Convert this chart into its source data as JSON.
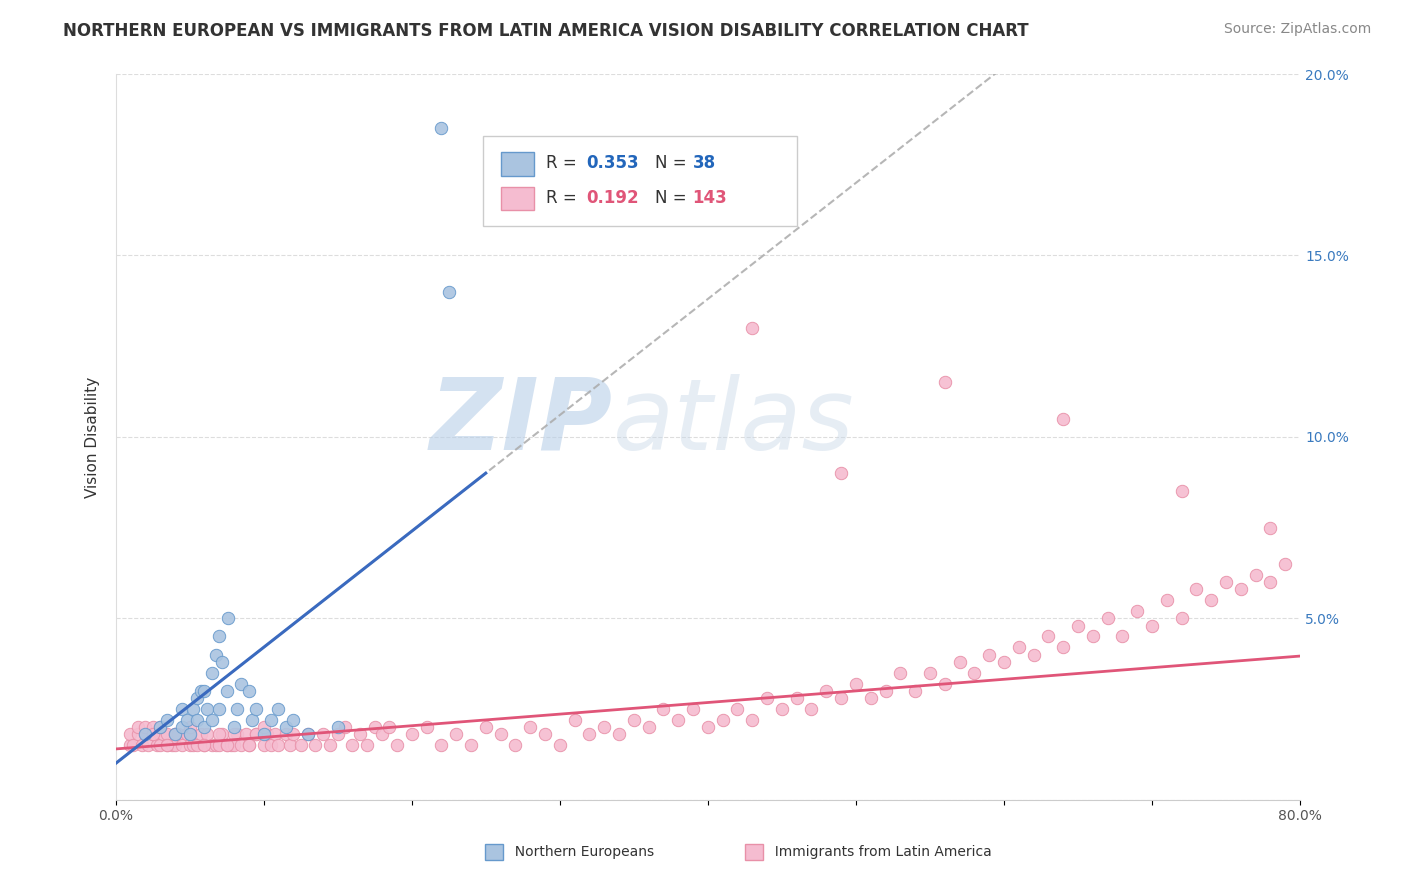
{
  "title": "NORTHERN EUROPEAN VS IMMIGRANTS FROM LATIN AMERICA VISION DISABILITY CORRELATION CHART",
  "source": "Source: ZipAtlas.com",
  "ylabel": "Vision Disability",
  "xlim": [
    0.0,
    0.8
  ],
  "ylim": [
    0.0,
    0.2
  ],
  "xticks": [
    0.0,
    0.1,
    0.2,
    0.3,
    0.4,
    0.5,
    0.6,
    0.7,
    0.8
  ],
  "xticklabels": [
    "0.0%",
    "",
    "",
    "",
    "",
    "",
    "",
    "",
    "80.0%"
  ],
  "yticks": [
    0.0,
    0.05,
    0.1,
    0.15,
    0.2
  ],
  "yticklabels": [
    "",
    "5.0%",
    "10.0%",
    "15.0%",
    "20.0%"
  ],
  "group1_color": "#aac4e0",
  "group1_edge": "#6699cc",
  "group2_color": "#f5bcd0",
  "group2_edge": "#e890a8",
  "line1_color": "#3a6abf",
  "line2_color": "#e05578",
  "dash_color": "#aaaaaa",
  "watermark_color": "#c5d8ec",
  "background_color": "#ffffff",
  "title_fontsize": 12,
  "source_fontsize": 10,
  "label_fontsize": 11,
  "tick_fontsize": 10,
  "group1_x": [
    0.02,
    0.03,
    0.035,
    0.04,
    0.045,
    0.045,
    0.048,
    0.05,
    0.052,
    0.055,
    0.055,
    0.058,
    0.06,
    0.06,
    0.062,
    0.065,
    0.065,
    0.068,
    0.07,
    0.07,
    0.072,
    0.075,
    0.076,
    0.08,
    0.082,
    0.085,
    0.09,
    0.092,
    0.095,
    0.1,
    0.105,
    0.11,
    0.115,
    0.12,
    0.13,
    0.15,
    0.22,
    0.225
  ],
  "group1_y": [
    0.018,
    0.02,
    0.022,
    0.018,
    0.02,
    0.025,
    0.022,
    0.018,
    0.025,
    0.022,
    0.028,
    0.03,
    0.02,
    0.03,
    0.025,
    0.022,
    0.035,
    0.04,
    0.025,
    0.045,
    0.038,
    0.03,
    0.05,
    0.02,
    0.025,
    0.032,
    0.03,
    0.022,
    0.025,
    0.018,
    0.022,
    0.025,
    0.02,
    0.022,
    0.018,
    0.02,
    0.185,
    0.14
  ],
  "group2_x": [
    0.01,
    0.01,
    0.012,
    0.015,
    0.015,
    0.018,
    0.02,
    0.02,
    0.022,
    0.025,
    0.025,
    0.028,
    0.03,
    0.03,
    0.032,
    0.035,
    0.035,
    0.038,
    0.04,
    0.04,
    0.042,
    0.045,
    0.048,
    0.05,
    0.05,
    0.052,
    0.055,
    0.058,
    0.06,
    0.062,
    0.065,
    0.068,
    0.07,
    0.072,
    0.075,
    0.078,
    0.08,
    0.082,
    0.085,
    0.088,
    0.09,
    0.095,
    0.1,
    0.102,
    0.105,
    0.108,
    0.11,
    0.115,
    0.118,
    0.12,
    0.125,
    0.13,
    0.135,
    0.14,
    0.145,
    0.15,
    0.155,
    0.16,
    0.165,
    0.17,
    0.175,
    0.18,
    0.185,
    0.19,
    0.2,
    0.21,
    0.22,
    0.23,
    0.24,
    0.25,
    0.26,
    0.27,
    0.28,
    0.29,
    0.3,
    0.31,
    0.32,
    0.33,
    0.34,
    0.35,
    0.36,
    0.37,
    0.38,
    0.39,
    0.4,
    0.41,
    0.42,
    0.43,
    0.44,
    0.45,
    0.46,
    0.47,
    0.48,
    0.49,
    0.5,
    0.51,
    0.52,
    0.53,
    0.54,
    0.55,
    0.56,
    0.57,
    0.58,
    0.59,
    0.6,
    0.61,
    0.62,
    0.63,
    0.64,
    0.65,
    0.66,
    0.67,
    0.68,
    0.69,
    0.7,
    0.71,
    0.72,
    0.73,
    0.74,
    0.75,
    0.76,
    0.77,
    0.78,
    0.79,
    0.025,
    0.03,
    0.035,
    0.04,
    0.05,
    0.06,
    0.07,
    0.075,
    0.08,
    0.09,
    0.095,
    0.1
  ],
  "group2_y": [
    0.015,
    0.018,
    0.015,
    0.018,
    0.02,
    0.015,
    0.018,
    0.02,
    0.015,
    0.018,
    0.02,
    0.015,
    0.018,
    0.015,
    0.018,
    0.015,
    0.018,
    0.015,
    0.018,
    0.015,
    0.018,
    0.015,
    0.018,
    0.015,
    0.018,
    0.015,
    0.015,
    0.018,
    0.015,
    0.018,
    0.015,
    0.015,
    0.015,
    0.018,
    0.015,
    0.015,
    0.015,
    0.018,
    0.015,
    0.018,
    0.015,
    0.018,
    0.015,
    0.018,
    0.015,
    0.018,
    0.015,
    0.018,
    0.015,
    0.018,
    0.015,
    0.018,
    0.015,
    0.018,
    0.015,
    0.018,
    0.02,
    0.015,
    0.018,
    0.015,
    0.02,
    0.018,
    0.02,
    0.015,
    0.018,
    0.02,
    0.015,
    0.018,
    0.015,
    0.02,
    0.018,
    0.015,
    0.02,
    0.018,
    0.015,
    0.022,
    0.018,
    0.02,
    0.018,
    0.022,
    0.02,
    0.025,
    0.022,
    0.025,
    0.02,
    0.022,
    0.025,
    0.022,
    0.028,
    0.025,
    0.028,
    0.025,
    0.03,
    0.028,
    0.032,
    0.028,
    0.03,
    0.035,
    0.03,
    0.035,
    0.032,
    0.038,
    0.035,
    0.04,
    0.038,
    0.042,
    0.04,
    0.045,
    0.042,
    0.048,
    0.045,
    0.05,
    0.045,
    0.052,
    0.048,
    0.055,
    0.05,
    0.058,
    0.055,
    0.06,
    0.058,
    0.062,
    0.06,
    0.065,
    0.018,
    0.02,
    0.015,
    0.018,
    0.02,
    0.015,
    0.018,
    0.015,
    0.018,
    0.015,
    0.018,
    0.02
  ],
  "group2_outliers_x": [
    0.43,
    0.49,
    0.56,
    0.64,
    0.72,
    0.78
  ],
  "group2_outliers_y": [
    0.13,
    0.09,
    0.115,
    0.105,
    0.085,
    0.075
  ]
}
